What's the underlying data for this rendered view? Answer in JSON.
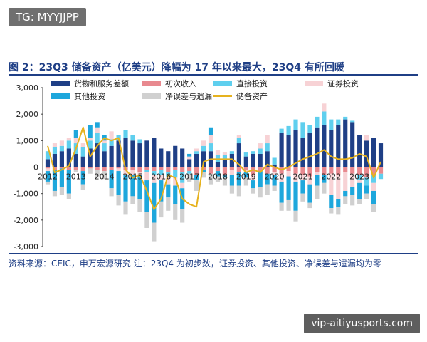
{
  "watermarks": {
    "top_left": "TG: MYYJJPP",
    "bottom_right": "vip-aitiyusports.com"
  },
  "title": "图 2：23Q3 储备资产（亿美元）降幅为 17 年以来最大，23Q4 有所回暖",
  "note": "资料来源：CEIC，申万宏源研究 注：23Q4 为初步数，证券投资、其他投资、净误差与遗漏均为零",
  "colors": {
    "goods": "#1f3f86",
    "primary": "#e8898f",
    "direct": "#5fcfee",
    "securities": "#f7d2d5",
    "other": "#1ea7dc",
    "errors": "#d0d0d0",
    "reserves": "#e6b21e"
  },
  "chart_data": {
    "type": "bar",
    "stacked": true,
    "title": "",
    "xlabel": "",
    "ylabel": "",
    "ylim": [
      -3000,
      3000
    ],
    "yticks": [
      "3,000",
      "2,000",
      "1,000",
      "0",
      "-1,000",
      "-2,000",
      "-3,000"
    ],
    "ytick_values": [
      3000,
      2000,
      1000,
      0,
      -1000,
      -2000,
      -3000
    ],
    "year_labels": [
      "2012",
      "2013",
      "2014",
      "2015",
      "2016",
      "2017",
      "2018",
      "2019",
      "2020",
      "2021",
      "2022",
      "2023"
    ],
    "categories": [
      "2012Q1",
      "2012Q2",
      "2012Q3",
      "2012Q4",
      "2013Q1",
      "2013Q2",
      "2013Q3",
      "2013Q4",
      "2014Q1",
      "2014Q2",
      "2014Q3",
      "2014Q4",
      "2015Q1",
      "2015Q2",
      "2015Q3",
      "2015Q4",
      "2016Q1",
      "2016Q2",
      "2016Q3",
      "2016Q4",
      "2017Q1",
      "2017Q2",
      "2017Q3",
      "2017Q4",
      "2018Q1",
      "2018Q2",
      "2018Q3",
      "2018Q4",
      "2019Q1",
      "2019Q2",
      "2019Q3",
      "2019Q4",
      "2020Q1",
      "2020Q2",
      "2020Q3",
      "2020Q4",
      "2021Q1",
      "2021Q2",
      "2021Q3",
      "2021Q4",
      "2022Q1",
      "2022Q2",
      "2022Q3",
      "2022Q4",
      "2023Q1",
      "2023Q2",
      "2023Q3",
      "2023Q4"
    ],
    "legend_position": "top",
    "grid": false,
    "series": [
      {
        "name": "货物和服务差额",
        "key": "goods",
        "kind": "bar",
        "values": [
          300,
          500,
          600,
          700,
          500,
          400,
          700,
          900,
          600,
          800,
          1000,
          1100,
          1000,
          900,
          1000,
          1100,
          700,
          600,
          800,
          700,
          300,
          500,
          600,
          600,
          200,
          300,
          500,
          900,
          400,
          500,
          500,
          600,
          100,
          1300,
          1200,
          1400,
          1100,
          1300,
          1500,
          1600,
          1400,
          1600,
          1800,
          1700,
          1200,
          1000,
          1100,
          900
        ]
      },
      {
        "name": "初次收入",
        "key": "primary",
        "kind": "bar",
        "values": [
          -50,
          -100,
          -50,
          -100,
          -100,
          -150,
          -50,
          -100,
          -150,
          -100,
          -50,
          -100,
          -100,
          -200,
          -100,
          -150,
          -100,
          -200,
          -100,
          -200,
          -150,
          -300,
          -100,
          -250,
          -150,
          -300,
          -100,
          -200,
          -100,
          -300,
          -150,
          -250,
          -200,
          -250,
          -150,
          -250,
          -300,
          -350,
          -200,
          -300,
          -250,
          -300,
          -200,
          -250,
          -300,
          -400,
          -300,
          -250
        ]
      },
      {
        "name": "直接投资",
        "key": "direct",
        "kind": "bar",
        "values": [
          300,
          250,
          200,
          300,
          400,
          350,
          300,
          400,
          300,
          250,
          200,
          300,
          200,
          150,
          -100,
          -150,
          -200,
          -150,
          -300,
          -400,
          -100,
          100,
          200,
          300,
          250,
          150,
          100,
          200,
          150,
          100,
          200,
          300,
          250,
          150,
          350,
          400,
          600,
          300,
          400,
          500,
          400,
          200,
          100,
          50,
          -200,
          -300,
          -300,
          -200
        ]
      },
      {
        "name": "证券投资",
        "key": "securities",
        "kind": "bar",
        "values": [
          -100,
          150,
          200,
          100,
          200,
          150,
          100,
          200,
          100,
          300,
          -100,
          -200,
          -200,
          -100,
          -300,
          -300,
          -200,
          -300,
          -300,
          -200,
          100,
          100,
          200,
          300,
          200,
          100,
          -200,
          100,
          -100,
          -200,
          200,
          300,
          -100,
          -300,
          -200,
          -300,
          -200,
          -300,
          -100,
          300,
          -800,
          -900,
          -700,
          -500,
          -100,
          200,
          -300,
          0
        ]
      },
      {
        "name": "其他投资",
        "key": "other",
        "kind": "bar",
        "values": [
          -400,
          -800,
          -700,
          -900,
          300,
          -500,
          500,
          200,
          200,
          -700,
          -900,
          -1000,
          -800,
          -900,
          -1200,
          -1500,
          -800,
          -500,
          -700,
          -800,
          100,
          -200,
          -100,
          300,
          -200,
          -100,
          -400,
          -500,
          -200,
          -300,
          -600,
          -400,
          -400,
          -800,
          -900,
          -1100,
          -500,
          -700,
          -400,
          -300,
          -500,
          -300,
          -200,
          -300,
          -600,
          -300,
          -500,
          0
        ]
      },
      {
        "name": "净误差与遗漏",
        "key": "errors",
        "kind": "bar",
        "values": [
          -100,
          -200,
          -300,
          -200,
          -100,
          -200,
          -200,
          -300,
          -300,
          -300,
          -400,
          -500,
          -300,
          -500,
          -600,
          -700,
          -600,
          -500,
          -600,
          -500,
          -300,
          -400,
          -200,
          -400,
          -200,
          -300,
          -300,
          -400,
          -300,
          -200,
          -400,
          -400,
          -200,
          -300,
          -400,
          -400,
          -300,
          -200,
          -500,
          -400,
          -200,
          -300,
          -300,
          -400,
          -200,
          -200,
          -300,
          0
        ]
      },
      {
        "name": "储备资产",
        "key": "reserves",
        "kind": "line",
        "values": [
          800,
          -200,
          -100,
          50,
          700,
          1500,
          400,
          800,
          1100,
          1000,
          1100,
          -100,
          -400,
          -300,
          -900,
          -1600,
          -1200,
          -300,
          -400,
          -1200,
          -1400,
          -1500,
          200,
          300,
          300,
          300,
          300,
          100,
          -200,
          -100,
          -200,
          100,
          0,
          -100,
          0,
          150,
          300,
          400,
          500,
          650,
          400,
          300,
          300,
          350,
          500,
          400,
          -400,
          200
        ]
      }
    ]
  }
}
